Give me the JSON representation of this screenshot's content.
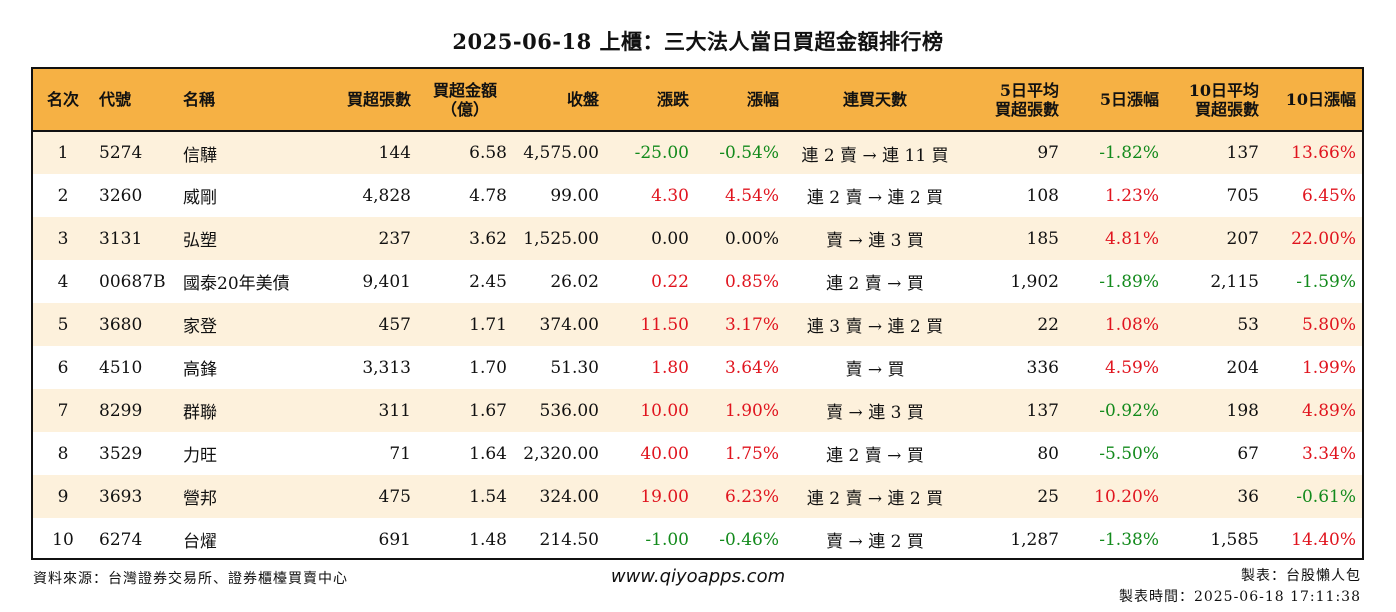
{
  "title": "2025-06-18 上櫃：三大法人當日買超金額排行榜",
  "colors": {
    "header_bg": "#f6b144",
    "row_alt_bg": "#fdf1dc",
    "positive": "#e0141e",
    "negative": "#138a1c"
  },
  "headers": {
    "rank": "名次",
    "code": "代號",
    "name": "名稱",
    "buy_lots": "買超張數",
    "buy_amount_l1": "買超金額",
    "buy_amount_l2": "（億）",
    "close": "收盤",
    "change": "漲跌",
    "change_pct": "漲幅",
    "streak": "連買天數",
    "avg5_l1": "5日平均",
    "avg5_l2": "買超張數",
    "pct5": "5日漲幅",
    "avg10_l1": "10日平均",
    "avg10_l2": "買超張數",
    "pct10": "10日漲幅"
  },
  "rows": [
    {
      "rank": "1",
      "code": "5274",
      "name": "信驊",
      "buy_lots": "144",
      "buy_amount": "6.58",
      "close": "4,575.00",
      "change": "-25.00",
      "change_pct": "-0.54%",
      "streak": "連 2 賣 → 連 11 買",
      "avg5": "97",
      "pct5": "-1.82%",
      "avg10": "137",
      "pct10": "13.66%"
    },
    {
      "rank": "2",
      "code": "3260",
      "name": "威剛",
      "buy_lots": "4,828",
      "buy_amount": "4.78",
      "close": "99.00",
      "change": "4.30",
      "change_pct": "4.54%",
      "streak": "連 2 賣 → 連 2 買",
      "avg5": "108",
      "pct5": "1.23%",
      "avg10": "705",
      "pct10": "6.45%"
    },
    {
      "rank": "3",
      "code": "3131",
      "name": "弘塑",
      "buy_lots": "237",
      "buy_amount": "3.62",
      "close": "1,525.00",
      "change": "0.00",
      "change_pct": "0.00%",
      "streak": "賣 → 連 3 買",
      "avg5": "185",
      "pct5": "4.81%",
      "avg10": "207",
      "pct10": "22.00%"
    },
    {
      "rank": "4",
      "code": "00687B",
      "name": "國泰20年美債",
      "buy_lots": "9,401",
      "buy_amount": "2.45",
      "close": "26.02",
      "change": "0.22",
      "change_pct": "0.85%",
      "streak": "連 2 賣 → 買",
      "avg5": "1,902",
      "pct5": "-1.89%",
      "avg10": "2,115",
      "pct10": "-1.59%"
    },
    {
      "rank": "5",
      "code": "3680",
      "name": "家登",
      "buy_lots": "457",
      "buy_amount": "1.71",
      "close": "374.00",
      "change": "11.50",
      "change_pct": "3.17%",
      "streak": "連 3 賣 → 連 2 買",
      "avg5": "22",
      "pct5": "1.08%",
      "avg10": "53",
      "pct10": "5.80%"
    },
    {
      "rank": "6",
      "code": "4510",
      "name": "高鋒",
      "buy_lots": "3,313",
      "buy_amount": "1.70",
      "close": "51.30",
      "change": "1.80",
      "change_pct": "3.64%",
      "streak": "賣 → 買",
      "avg5": "336",
      "pct5": "4.59%",
      "avg10": "204",
      "pct10": "1.99%"
    },
    {
      "rank": "7",
      "code": "8299",
      "name": "群聯",
      "buy_lots": "311",
      "buy_amount": "1.67",
      "close": "536.00",
      "change": "10.00",
      "change_pct": "1.90%",
      "streak": "賣 → 連 3 買",
      "avg5": "137",
      "pct5": "-0.92%",
      "avg10": "198",
      "pct10": "4.89%"
    },
    {
      "rank": "8",
      "code": "3529",
      "name": "力旺",
      "buy_lots": "71",
      "buy_amount": "1.64",
      "close": "2,320.00",
      "change": "40.00",
      "change_pct": "1.75%",
      "streak": "連 2 賣 → 買",
      "avg5": "80",
      "pct5": "-5.50%",
      "avg10": "67",
      "pct10": "3.34%"
    },
    {
      "rank": "9",
      "code": "3693",
      "name": "營邦",
      "buy_lots": "475",
      "buy_amount": "1.54",
      "close": "324.00",
      "change": "19.00",
      "change_pct": "6.23%",
      "streak": "連 2 賣 → 連 2 買",
      "avg5": "25",
      "pct5": "10.20%",
      "avg10": "36",
      "pct10": "-0.61%"
    },
    {
      "rank": "10",
      "code": "6274",
      "name": "台燿",
      "buy_lots": "691",
      "buy_amount": "1.48",
      "close": "214.50",
      "change": "-1.00",
      "change_pct": "-0.46%",
      "streak": "賣 → 連 2 買",
      "avg5": "1,287",
      "pct5": "-1.38%",
      "avg10": "1,585",
      "pct10": "14.40%"
    }
  ],
  "footer": {
    "source": "資料來源：台灣證券交易所、證券櫃檯買賣中心",
    "website": "www.qiyoapps.com",
    "author": "製表：台股懶人包",
    "timestamp": "製表時間：2025-06-18 17:11:38"
  }
}
